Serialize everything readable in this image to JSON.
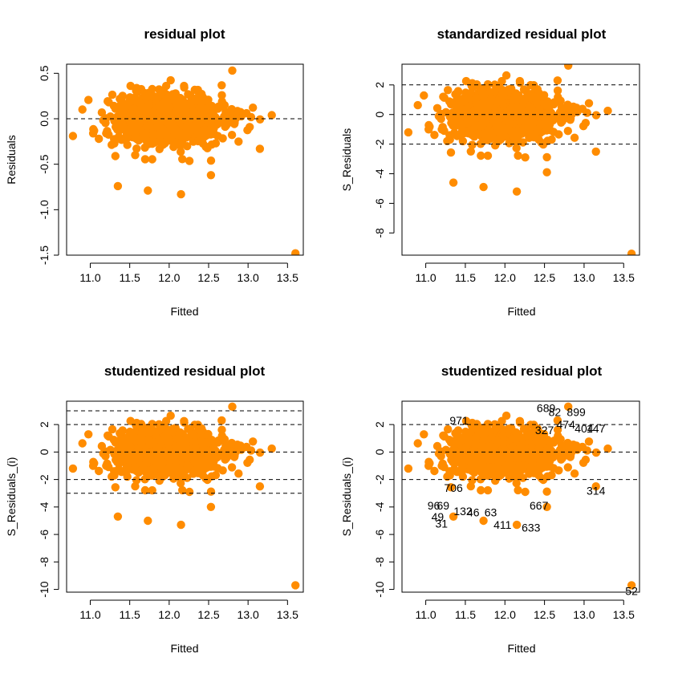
{
  "colors": {
    "points": "#ff8c00",
    "axes": "#000000",
    "reference_lines": "#000000",
    "background": "#ffffff"
  },
  "chart_data": [
    {
      "type": "scatter",
      "title": "residual plot",
      "xlabel": "Fitted",
      "ylabel": "Residuals",
      "xlim": [
        10.7,
        13.7
      ],
      "ylim": [
        -1.5,
        0.6
      ],
      "xticks": [
        "11.0",
        "11.5",
        "12.0",
        "12.5",
        "13.0",
        "13.5"
      ],
      "yticks": [
        "-1.5",
        "-1.0",
        "-0.5",
        "0.0",
        "0.5"
      ],
      "hlines": [
        0
      ],
      "highlight_points": [
        [
          10.78,
          -0.19
        ],
        [
          11.35,
          -0.74
        ],
        [
          11.73,
          -0.79
        ],
        [
          12.15,
          -0.83
        ],
        [
          12.53,
          -0.62
        ],
        [
          12.8,
          0.53
        ],
        [
          13.15,
          -0.33
        ],
        [
          13.3,
          0.04
        ],
        [
          13.6,
          -1.48
        ]
      ]
    },
    {
      "type": "scatter",
      "title": "standardized residual plot",
      "xlabel": "Fitted",
      "ylabel": "S_Residuals",
      "xlim": [
        10.7,
        13.7
      ],
      "ylim": [
        -9.5,
        3.4
      ],
      "xticks": [
        "11.0",
        "11.5",
        "12.0",
        "12.5",
        "13.0",
        "13.5"
      ],
      "yticks": [
        "-8",
        "-6",
        "-4",
        "-2",
        "0",
        "2"
      ],
      "hlines": [
        0,
        2,
        -2
      ],
      "highlight_points": [
        [
          10.78,
          -1.2
        ],
        [
          11.35,
          -4.6
        ],
        [
          11.73,
          -4.9
        ],
        [
          12.15,
          -5.2
        ],
        [
          12.53,
          -3.9
        ],
        [
          12.8,
          3.3
        ],
        [
          13.15,
          -2.5
        ],
        [
          13.3,
          0.25
        ],
        [
          13.6,
          -9.4
        ]
      ]
    },
    {
      "type": "scatter",
      "title": "studentized residual plot",
      "xlabel": "Fitted",
      "ylabel": "S_Residuals_(i)",
      "xlim": [
        10.7,
        13.7
      ],
      "ylim": [
        -10.2,
        3.7
      ],
      "xticks": [
        "11.0",
        "11.5",
        "12.0",
        "12.5",
        "13.0",
        "13.5"
      ],
      "yticks": [
        "-10",
        "-8",
        "-6",
        "-4",
        "-2",
        "0",
        "2"
      ],
      "hlines": [
        0,
        2,
        -2,
        3,
        -3
      ],
      "highlight_points": [
        [
          10.78,
          -1.2
        ],
        [
          11.35,
          -4.7
        ],
        [
          11.73,
          -5.0
        ],
        [
          12.15,
          -5.3
        ],
        [
          12.53,
          -4.0
        ],
        [
          12.8,
          3.3
        ],
        [
          13.15,
          -2.5
        ],
        [
          13.3,
          0.25
        ],
        [
          13.6,
          -9.7
        ]
      ]
    },
    {
      "type": "scatter",
      "title": "studentized residual plot",
      "xlabel": "Fitted",
      "ylabel": "S_Residuals_(i)",
      "xlim": [
        10.7,
        13.7
      ],
      "ylim": [
        -10.2,
        3.7
      ],
      "xticks": [
        "11.0",
        "11.5",
        "12.0",
        "12.5",
        "13.0",
        "13.5"
      ],
      "yticks": [
        "-10",
        "-8",
        "-6",
        "-4",
        "-2",
        "0",
        "2"
      ],
      "hlines": [
        0,
        2,
        -2
      ],
      "highlight_points": [
        [
          10.78,
          -1.2
        ],
        [
          11.35,
          -4.7
        ],
        [
          11.73,
          -5.0
        ],
        [
          12.15,
          -5.3
        ],
        [
          12.53,
          -4.0
        ],
        [
          12.8,
          3.3
        ],
        [
          13.15,
          -2.5
        ],
        [
          13.3,
          0.25
        ],
        [
          13.6,
          -9.7
        ]
      ],
      "annotations": [
        {
          "text": "971",
          "x": 11.42,
          "y": 2.3
        },
        {
          "text": "689",
          "x": 12.52,
          "y": 3.2
        },
        {
          "text": "82",
          "x": 12.63,
          "y": 2.9
        },
        {
          "text": "899",
          "x": 12.9,
          "y": 2.9
        },
        {
          "text": "474",
          "x": 12.77,
          "y": 2.0
        },
        {
          "text": "404",
          "x": 13.0,
          "y": 1.7
        },
        {
          "text": "147",
          "x": 13.15,
          "y": 1.7
        },
        {
          "text": "327",
          "x": 12.5,
          "y": 1.6
        },
        {
          "text": "706",
          "x": 11.35,
          "y": -2.6
        },
        {
          "text": "314",
          "x": 13.15,
          "y": -2.8
        },
        {
          "text": "667",
          "x": 12.43,
          "y": -3.9
        },
        {
          "text": "96",
          "x": 11.1,
          "y": -3.9
        },
        {
          "text": "69",
          "x": 11.22,
          "y": -3.9
        },
        {
          "text": "49",
          "x": 11.15,
          "y": -4.7
        },
        {
          "text": "31",
          "x": 11.2,
          "y": -5.2
        },
        {
          "text": "132",
          "x": 11.47,
          "y": -4.3
        },
        {
          "text": "46",
          "x": 11.6,
          "y": -4.4
        },
        {
          "text": "63",
          "x": 11.82,
          "y": -4.4
        },
        {
          "text": "411",
          "x": 11.97,
          "y": -5.3
        },
        {
          "text": "633",
          "x": 12.33,
          "y": -5.5
        },
        {
          "text": "52",
          "x": 13.6,
          "y": -10.1
        }
      ]
    }
  ]
}
